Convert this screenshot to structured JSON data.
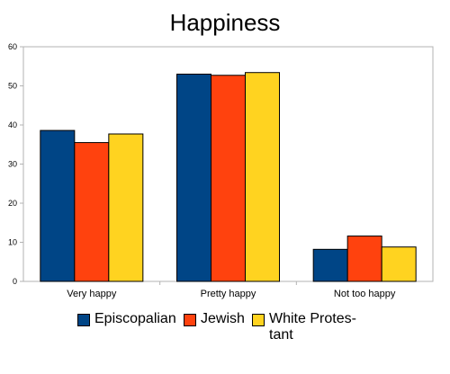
{
  "chart_data": {
    "type": "bar",
    "title": "Happiness",
    "categories": [
      "Very happy",
      "Pretty happy",
      "Not too happy"
    ],
    "series": [
      {
        "name": "Episcopalian",
        "color": "#004586",
        "values": [
          38.6,
          53.0,
          8.2
        ]
      },
      {
        "name": "Jewish",
        "color": "#ff420e",
        "values": [
          35.5,
          52.7,
          11.6
        ]
      },
      {
        "name": "White Protes- tant",
        "color": "#ffd320",
        "values": [
          37.7,
          53.4,
          8.8
        ]
      }
    ],
    "ylim": [
      0,
      60
    ],
    "yticks": [
      0,
      10,
      20,
      30,
      40,
      50,
      60
    ],
    "grid": false,
    "legend": "bottom"
  }
}
